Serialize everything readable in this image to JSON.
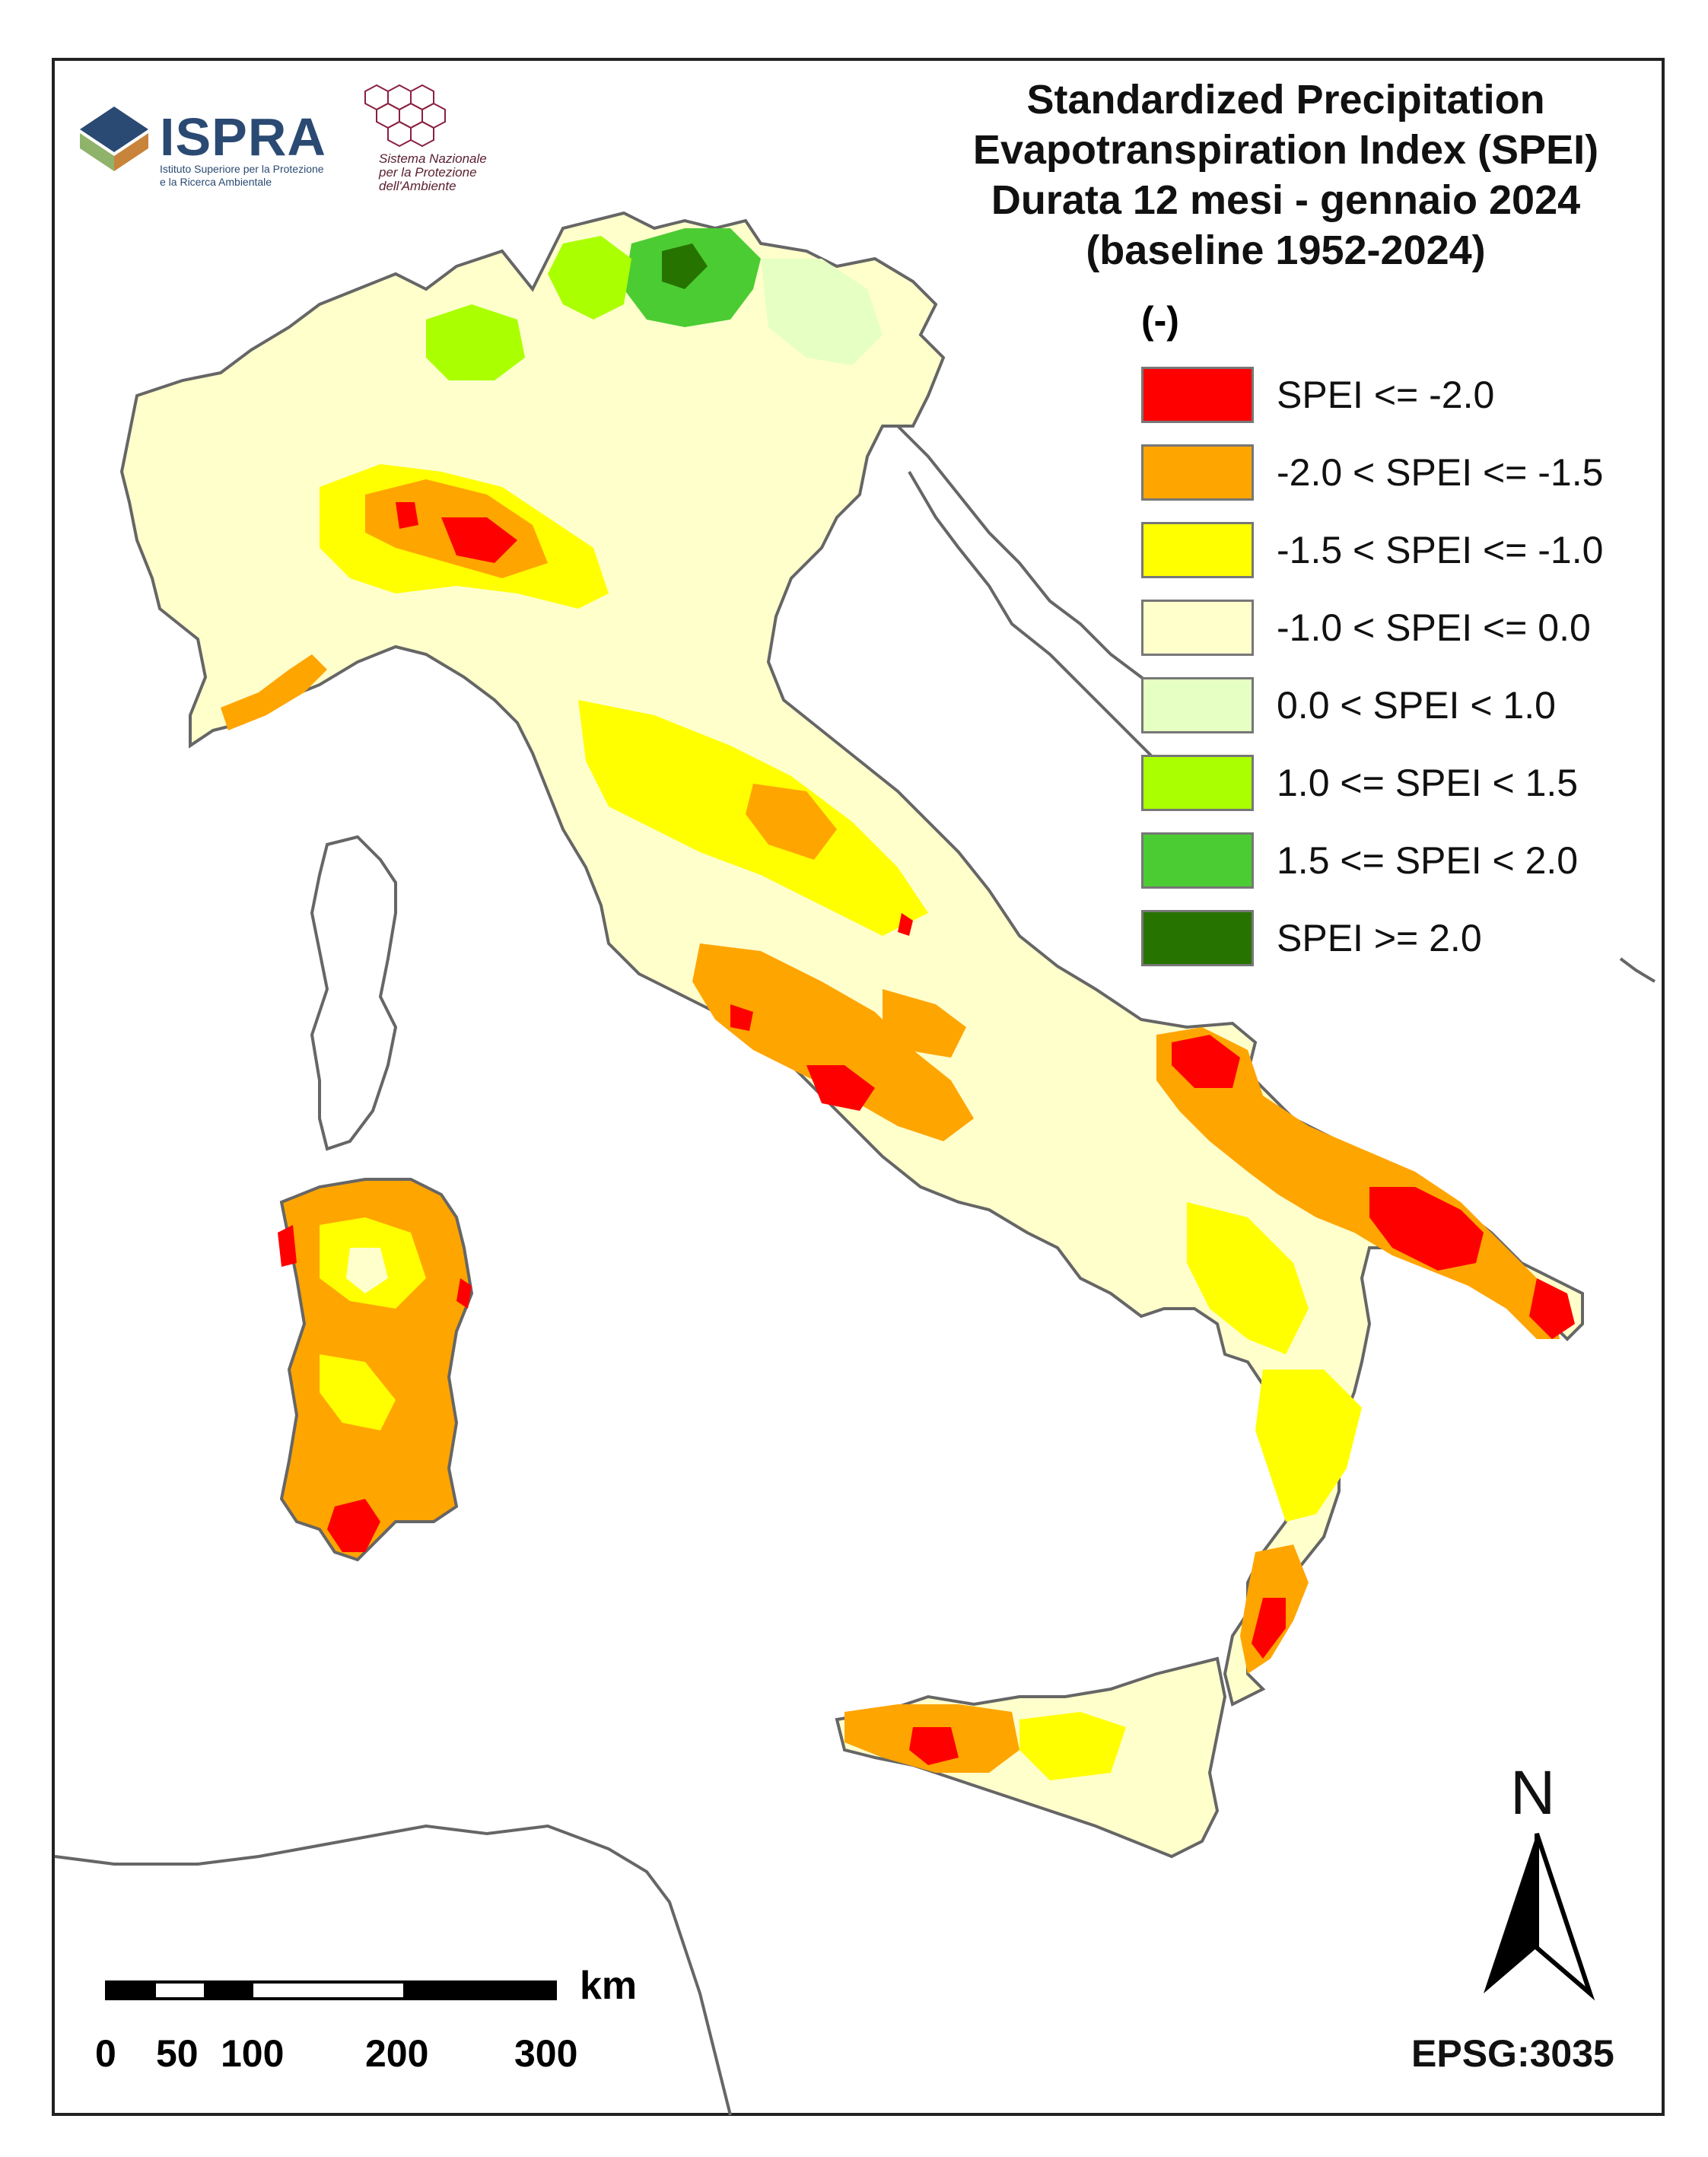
{
  "title": {
    "line1": "Standardized Precipitation",
    "line2": "Evapotranspiration  Index (SPEI)",
    "line3": "Durata 12 mesi - gennaio 2024",
    "line4": "(baseline 1952-2024)"
  },
  "legend": {
    "unit": "(-)",
    "items": [
      {
        "label": "SPEI <= -2.0",
        "color": "#ff0000"
      },
      {
        "label": "-2.0 < SPEI <= -1.5",
        "color": "#ffa500"
      },
      {
        "label": "-1.5 < SPEI <= -1.0",
        "color": "#ffff00"
      },
      {
        "label": "-1.0 < SPEI <= 0.0",
        "color": "#ffffcc"
      },
      {
        "label": "0.0 < SPEI < 1.0",
        "color": "#e6ffc2"
      },
      {
        "label": "1.0 <= SPEI < 1.5",
        "color": "#aaff00"
      },
      {
        "label": "1.5 <= SPEI < 2.0",
        "color": "#4ccc33"
      },
      {
        "label": "SPEI >= 2.0",
        "color": "#267300"
      }
    ]
  },
  "logos": {
    "ispra": "ISPRA",
    "ispra_sub1": "Istituto Superiore per la Protezione",
    "ispra_sub2": "e la Ricerca Ambientale",
    "snpa1": "Sistema Nazionale",
    "snpa2": "per la Protezione",
    "snpa3": "dell'Ambiente"
  },
  "north": "N",
  "projection": "EPSG:3035",
  "scalebar": {
    "unit": "km",
    "ticks": [
      "0",
      "50",
      "100",
      "200",
      "300"
    ]
  }
}
